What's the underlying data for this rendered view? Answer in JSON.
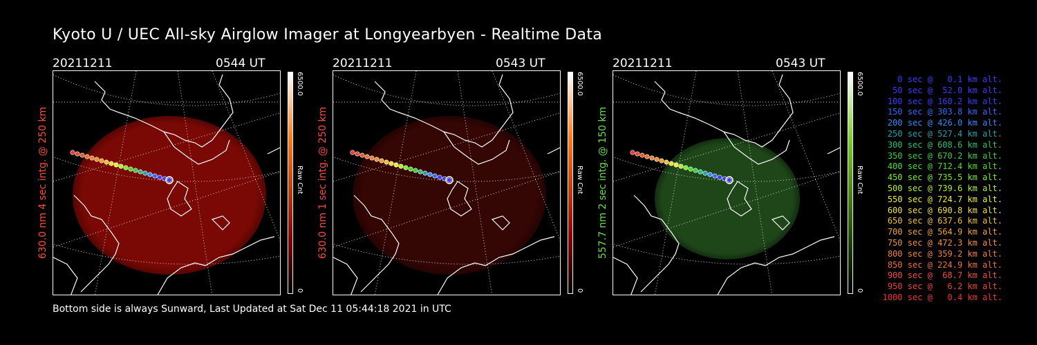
{
  "title": "Kyoto U / UEC All-sky Airglow Imager at Longyearbyen - Realtime Data",
  "footer": "Bottom side is always Sunward, Last Updated at Sat Dec 11 05:44:18 2021 in UTC",
  "panels": [
    {
      "date": "20211211",
      "time": "0544 UT",
      "label": "630.0 nm 4 sec intg. @ 250 km",
      "label_color": "#ff4a3a",
      "scale_max": "6500.0",
      "scale_min": "0",
      "unit": "Raw Cnt",
      "glow": "#8f0a05",
      "glow_opacity": 0.85,
      "cb_top": "#ffffff",
      "cb_mid": "#ff7a1a",
      "cb_low": "#8a0000"
    },
    {
      "date": "20211211",
      "time": "0543 UT",
      "label": "630.0 nm 1 sec intg. @ 250 km",
      "label_color": "#ff4a3a",
      "scale_max": "6500.0",
      "scale_min": "0",
      "unit": "Raw Cnt",
      "glow": "#3a0604",
      "glow_opacity": 0.9,
      "cb_top": "#ffffff",
      "cb_mid": "#ff7a1a",
      "cb_low": "#8a0000"
    },
    {
      "date": "20211211",
      "time": "0543 UT",
      "label": "557.7 nm 2 sec intg. @ 150 km",
      "label_color": "#66e04a",
      "scale_max": "6500.0",
      "scale_min": "0",
      "unit": "Raw Cnt",
      "glow": "#1f4a1a",
      "glow_opacity": 0.95,
      "cb_top": "#ffffff",
      "cb_mid": "#7ad02a",
      "cb_low": "#1a4a00"
    }
  ],
  "legend": [
    {
      "text": "0 sec @   0.1 km alt.",
      "color": "#3a3aff"
    },
    {
      "text": "50 sec @  52.0 km alt.",
      "color": "#3a3aff"
    },
    {
      "text": "100 sec @ 160.2 km alt.",
      "color": "#3a3aff"
    },
    {
      "text": "150 sec @ 303.8 km alt.",
      "color": "#2a6aff"
    },
    {
      "text": "200 sec @ 426.0 km alt.",
      "color": "#2a8aff"
    },
    {
      "text": "250 sec @ 527.4 km alt.",
      "color": "#20a0b0"
    },
    {
      "text": "300 sec @ 608.6 km alt.",
      "color": "#20c080"
    },
    {
      "text": "350 sec @ 670.2 km alt.",
      "color": "#30d040"
    },
    {
      "text": "400 sec @ 712.4 km alt.",
      "color": "#40e020"
    },
    {
      "text": "450 sec @ 735.5 km alt.",
      "color": "#70f020"
    },
    {
      "text": "500 sec @ 739.6 km alt.",
      "color": "#b0f020"
    },
    {
      "text": "550 sec @ 724.7 km alt.",
      "color": "#f0f020"
    },
    {
      "text": "600 sec @ 690.8 km alt.",
      "color": "#f0e030"
    },
    {
      "text": "650 sec @ 637.6 km alt.",
      "color": "#f0c030"
    },
    {
      "text": "700 sec @ 564.9 km alt.",
      "color": "#f0a030"
    },
    {
      "text": "750 sec @ 472.3 km alt.",
      "color": "#f09030"
    },
    {
      "text": "800 sec @ 359.2 km alt.",
      "color": "#f08030"
    },
    {
      "text": "850 sec @ 224.9 km alt.",
      "color": "#f07030"
    },
    {
      "text": "900 sec @  68.7 km alt.",
      "color": "#f05030"
    },
    {
      "text": "950 sec @   6.2 km alt.",
      "color": "#f04030"
    },
    {
      "text": "1000 sec @   0.4 km alt.",
      "color": "#f03030"
    }
  ]
}
